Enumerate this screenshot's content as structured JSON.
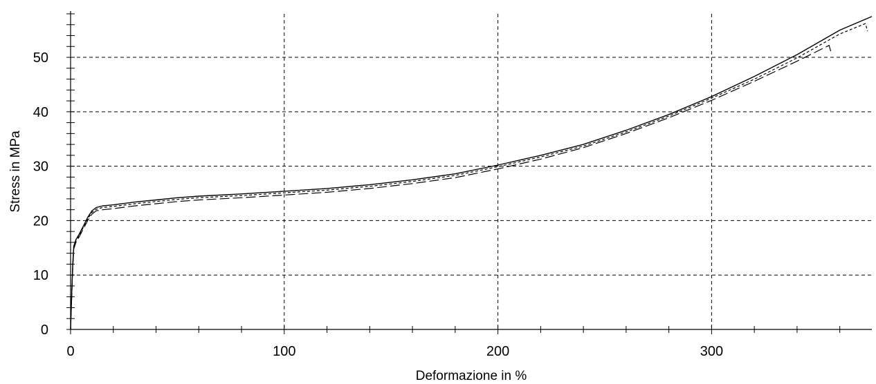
{
  "chart_data": {
    "type": "line",
    "title": "",
    "xlabel": "Deformazione in %",
    "ylabel": "Stress in MPa",
    "xlim": [
      0,
      375
    ],
    "ylim": [
      0,
      58
    ],
    "x_ticks": [
      0,
      100,
      200,
      300
    ],
    "x_tick_labels": [
      "0",
      "100",
      "200",
      "300"
    ],
    "y_ticks": [
      0,
      10,
      20,
      30,
      40,
      50
    ],
    "y_tick_labels": [
      "0",
      "10",
      "20",
      "30",
      "40",
      "50"
    ],
    "x_minor_step": 20,
    "y_minor_step": 2,
    "grid": true,
    "legend": "none",
    "series": [
      {
        "style": "solid",
        "x": [
          0,
          0.5,
          1,
          1.5,
          2.5,
          4,
          6,
          8,
          10,
          12,
          15,
          20,
          30,
          40,
          50,
          60,
          80,
          100,
          120,
          140,
          160,
          180,
          200,
          220,
          240,
          260,
          280,
          300,
          320,
          340,
          360,
          375
        ],
        "y": [
          0,
          6,
          12,
          15.3,
          16.5,
          17.5,
          19,
          20.6,
          21.8,
          22.4,
          22.7,
          22.9,
          23.4,
          23.8,
          24.2,
          24.5,
          24.9,
          25.4,
          25.9,
          26.6,
          27.5,
          28.6,
          30.2,
          32.0,
          34.0,
          36.6,
          39.5,
          42.8,
          46.5,
          50.5,
          55.0,
          57.5
        ]
      },
      {
        "style": "dashed",
        "x": [
          0,
          0.5,
          1,
          1.5,
          2.5,
          4,
          6,
          8,
          10,
          12,
          15,
          20,
          30,
          40,
          50,
          60,
          80,
          100,
          120,
          140,
          160,
          180,
          200,
          220,
          240,
          260,
          280,
          300,
          320,
          340,
          360,
          372,
          373
        ],
        "y": [
          0,
          6,
          11.5,
          15,
          16.3,
          17.3,
          18.8,
          20.3,
          21.5,
          22.1,
          22.4,
          22.6,
          23.1,
          23.5,
          23.9,
          24.2,
          24.6,
          25.1,
          25.6,
          26.3,
          27.2,
          28.3,
          29.9,
          31.7,
          33.7,
          36.3,
          39.2,
          42.5,
          46.0,
          49.9,
          54.3,
          56.2,
          54.8
        ]
      },
      {
        "style": "long-dash",
        "x": [
          0,
          0.5,
          1,
          1.5,
          2.5,
          4,
          6,
          8,
          10,
          12,
          15,
          20,
          30,
          40,
          50,
          60,
          80,
          100,
          120,
          140,
          160,
          180,
          200,
          220,
          240,
          260,
          280,
          300,
          320,
          340,
          355,
          356
        ],
        "y": [
          0,
          5.5,
          11,
          14.8,
          16,
          17,
          18.5,
          20,
          21.2,
          21.8,
          22.0,
          22.2,
          22.7,
          23.1,
          23.5,
          23.8,
          24.2,
          24.7,
          25.2,
          25.9,
          26.8,
          27.9,
          29.5,
          31.3,
          33.4,
          36.0,
          38.9,
          42.1,
          45.6,
          49.3,
          52.2,
          50.8
        ]
      }
    ]
  }
}
